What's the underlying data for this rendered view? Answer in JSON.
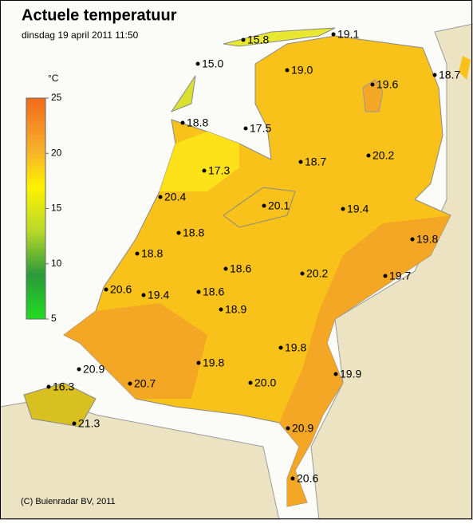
{
  "header": {
    "title": "Actuele temperatuur",
    "subtitle": "dinsdag 19 april 2011 11:50"
  },
  "legend": {
    "unit": "°C",
    "ticks": [
      25,
      20,
      15,
      10,
      5
    ]
  },
  "stations": [
    "15.8",
    "19.1",
    "15.0",
    "19.0",
    "19.6",
    "18.7",
    "18.8",
    "17.5",
    "18.7",
    "20.2",
    "17.3",
    "20.4",
    "20.1",
    "19.4",
    "19.8",
    "18.8",
    "18.8",
    "18.6",
    "20.2",
    "19.7",
    "20.6",
    "19.4",
    "18.6",
    "18.9",
    "19.8",
    "20.9",
    "19.9",
    "16.3",
    "20.7",
    "19.8",
    "20.0",
    "21.3",
    "20.9",
    "20.6"
  ],
  "footer": {
    "copyright": "(C) Buienradar BV, 2011"
  }
}
